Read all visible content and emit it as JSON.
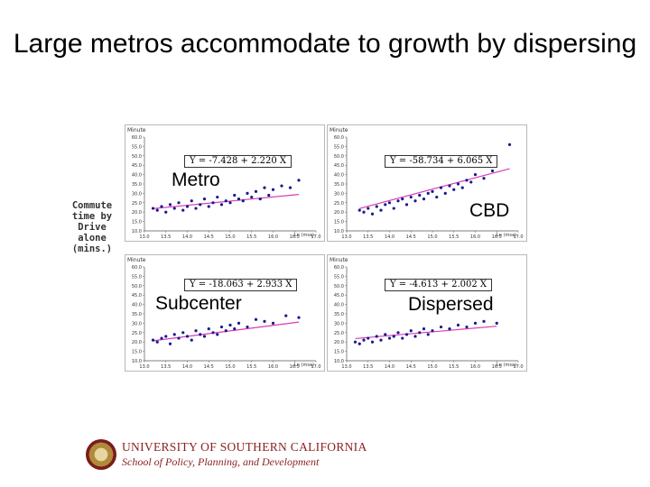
{
  "title": "Large metros accommodate to growth by dispersing",
  "side_label": [
    "Commute",
    "time by",
    "Drive",
    "alone",
    "(mins.)"
  ],
  "colors": {
    "points": "#1a1a8c",
    "fit": "#d63cb8",
    "frame": "#b8b8b8"
  },
  "logo": {
    "university": "UNIVERSITY OF SOUTHERN CALIFORNIA",
    "school": "School of Policy, Planning, and Development"
  },
  "chart_data": [
    {
      "type": "scatter",
      "title": "",
      "tag": "Metro",
      "equation": "Y = -7.428 + 2.220 X",
      "intercept": -7.428,
      "slope": 2.22,
      "ylabel": "Minute",
      "xlabel": "Ln (msa)",
      "xlim": [
        13.0,
        17.0
      ],
      "ylim": [
        10,
        60
      ],
      "xticks": [
        "13.0",
        "13.5",
        "14.0",
        "14.5",
        "15.0",
        "15.5",
        "16.0",
        "16.5",
        "17.0"
      ],
      "yticks": [
        "60.0",
        "55.0",
        "50.0",
        "45.0",
        "40.0",
        "35.0",
        "30.0",
        "25.0",
        "20.0",
        "15.0",
        "10.0"
      ],
      "x": [
        13.2,
        13.3,
        13.4,
        13.5,
        13.6,
        13.7,
        13.8,
        13.9,
        14.0,
        14.1,
        14.2,
        14.3,
        14.4,
        14.5,
        14.6,
        14.7,
        14.8,
        14.9,
        15.0,
        15.1,
        15.2,
        15.3,
        15.4,
        15.5,
        15.6,
        15.7,
        15.8,
        15.9,
        16.0,
        16.2,
        16.4,
        16.6
      ],
      "y": [
        22,
        21,
        23,
        20,
        24,
        22,
        25,
        21,
        23,
        26,
        22,
        24,
        27,
        23,
        25,
        28,
        24,
        26,
        25,
        29,
        27,
        26,
        30,
        28,
        31,
        27,
        33,
        29,
        32,
        34,
        33,
        37
      ]
    },
    {
      "type": "scatter",
      "title": "",
      "tag": "CBD",
      "equation": "Y = -58.734 + 6.065 X",
      "intercept": -58.734,
      "slope": 6.065,
      "ylabel": "Minute",
      "xlabel": "Ln (msa)",
      "xlim": [
        13.0,
        17.0
      ],
      "ylim": [
        10,
        60
      ],
      "xticks": [
        "13.0",
        "13.5",
        "14.0",
        "14.5",
        "15.0",
        "15.5",
        "16.0",
        "16.5",
        "17.0"
      ],
      "yticks": [
        "60.0",
        "55.0",
        "50.0",
        "45.0",
        "40.0",
        "35.0",
        "30.0",
        "25.0",
        "20.0",
        "15.0",
        "10.0"
      ],
      "x": [
        13.3,
        13.4,
        13.5,
        13.6,
        13.7,
        13.8,
        13.9,
        14.0,
        14.1,
        14.2,
        14.3,
        14.4,
        14.5,
        14.6,
        14.7,
        14.8,
        14.9,
        15.0,
        15.1,
        15.2,
        15.3,
        15.4,
        15.5,
        15.6,
        15.7,
        15.8,
        15.9,
        16.0,
        16.2,
        16.4,
        16.8
      ],
      "y": [
        21,
        20,
        22,
        19,
        23,
        21,
        24,
        25,
        22,
        26,
        27,
        24,
        28,
        26,
        29,
        27,
        30,
        31,
        28,
        33,
        30,
        34,
        32,
        35,
        33,
        37,
        36,
        40,
        38,
        42,
        56
      ]
    },
    {
      "type": "scatter",
      "title": "",
      "tag": "Subcenter",
      "equation": "Y = -18.063 + 2.933 X",
      "intercept": -18.063,
      "slope": 2.933,
      "ylabel": "Minute",
      "xlabel": "Ln (msa)",
      "xlim": [
        13.0,
        17.0
      ],
      "ylim": [
        10,
        60
      ],
      "xticks": [
        "13.0",
        "13.5",
        "14.0",
        "14.5",
        "15.0",
        "15.5",
        "16.0",
        "16.5",
        "17.0"
      ],
      "yticks": [
        "60.0",
        "55.0",
        "50.0",
        "45.0",
        "40.0",
        "35.0",
        "30.0",
        "25.0",
        "20.0",
        "15.0",
        "10.0"
      ],
      "x": [
        13.2,
        13.3,
        13.4,
        13.5,
        13.6,
        13.7,
        13.8,
        13.9,
        14.0,
        14.1,
        14.2,
        14.3,
        14.4,
        14.5,
        14.6,
        14.7,
        14.8,
        14.9,
        15.0,
        15.1,
        15.2,
        15.4,
        15.6,
        15.8,
        16.0,
        16.3,
        16.6
      ],
      "y": [
        21,
        20,
        22,
        23,
        19,
        24,
        22,
        25,
        23,
        21,
        26,
        24,
        23,
        27,
        25,
        24,
        28,
        26,
        29,
        27,
        30,
        28,
        32,
        31,
        30,
        34,
        33
      ]
    },
    {
      "type": "scatter",
      "title": "",
      "tag": "Dispersed",
      "equation": "Y = -4.613 + 2.002 X",
      "intercept": -4.613,
      "slope": 2.002,
      "ylabel": "Minute",
      "xlabel": "Ln (msa)",
      "xlim": [
        13.0,
        17.0
      ],
      "ylim": [
        10,
        60
      ],
      "xticks": [
        "13.0",
        "13.5",
        "14.0",
        "14.5",
        "15.0",
        "15.5",
        "16.0",
        "16.5",
        "17.0"
      ],
      "yticks": [
        "60.0",
        "55.0",
        "50.0",
        "45.0",
        "40.0",
        "35.0",
        "30.0",
        "25.0",
        "20.0",
        "15.0",
        "10.0"
      ],
      "x": [
        13.2,
        13.3,
        13.4,
        13.5,
        13.6,
        13.7,
        13.8,
        13.9,
        14.0,
        14.1,
        14.2,
        14.3,
        14.4,
        14.5,
        14.6,
        14.7,
        14.8,
        14.9,
        15.0,
        15.2,
        15.4,
        15.6,
        15.8,
        16.0,
        16.2,
        16.5
      ],
      "y": [
        20,
        19,
        21,
        22,
        20,
        23,
        21,
        24,
        22,
        23,
        25,
        22,
        24,
        26,
        23,
        25,
        27,
        24,
        26,
        28,
        27,
        29,
        28,
        30,
        31,
        30
      ]
    }
  ]
}
